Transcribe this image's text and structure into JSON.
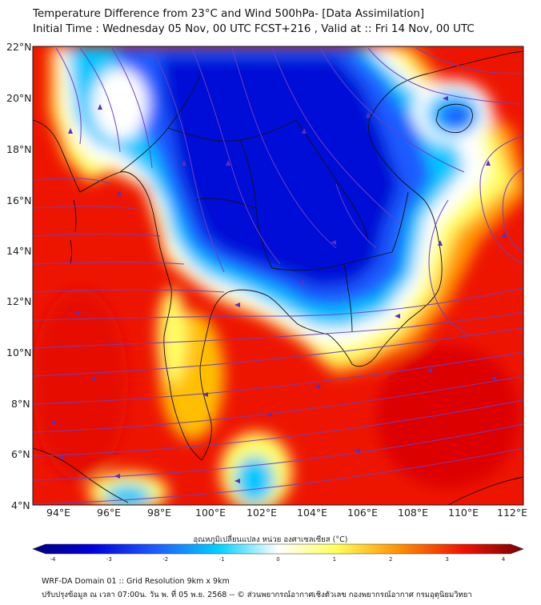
{
  "header": {
    "title_line1": "Temperature Difference from 23°C and Wind 500hPa- [Data Assimilation]",
    "title_line2": "Initial Time : Wednesday 05 Nov, 00 UTC FCST+216 , Valid at ::  Fri 14 Nov, 00 UTC"
  },
  "map": {
    "lat_labels": [
      "22°N",
      "20°N",
      "18°N",
      "16°N",
      "14°N",
      "12°N",
      "10°N",
      "8°N",
      "6°N",
      "4°N"
    ],
    "lon_labels": [
      "94°E",
      "96°E",
      "98°E",
      "100°E",
      "102°E",
      "104°E",
      "106°E",
      "108°E",
      "110°E",
      "112°E"
    ],
    "lat_range": [
      4,
      22
    ],
    "lon_range": [
      93,
      112.5
    ]
  },
  "colorbar": {
    "title": "อุณหภูมิเปลี่ยนแปลง หน่วย องศาเซลเซียส (°C)",
    "ticks": [
      "-4",
      "-3",
      "-2",
      "-1",
      "0",
      "1",
      "2",
      "3",
      "4"
    ],
    "range": [
      -4,
      4
    ]
  },
  "footer": {
    "line1": "WRF-DA Domain 01 :: Grid Resolution 9km x 9km",
    "line2": "ปรับปรุงข้อมูล ณ เวลา 07:00น. วัน พ. ที่ 05 พ.ย. 2568 -- © ส่วนพยากรณ์อากาศเชิงตัวเลข กองพยากรณ์อากาศ กรมอุตุนิยมวิทยา"
  },
  "colors": {
    "cold_deep": "#0000cd",
    "cold_mid": "#00c8ff",
    "neutral": "#ffffff",
    "warm_light": "#ffff66",
    "warm_mid": "#ff8c00",
    "hot": "#ee1100",
    "streamline": "#6b3fc8",
    "coastline": "#111111"
  }
}
